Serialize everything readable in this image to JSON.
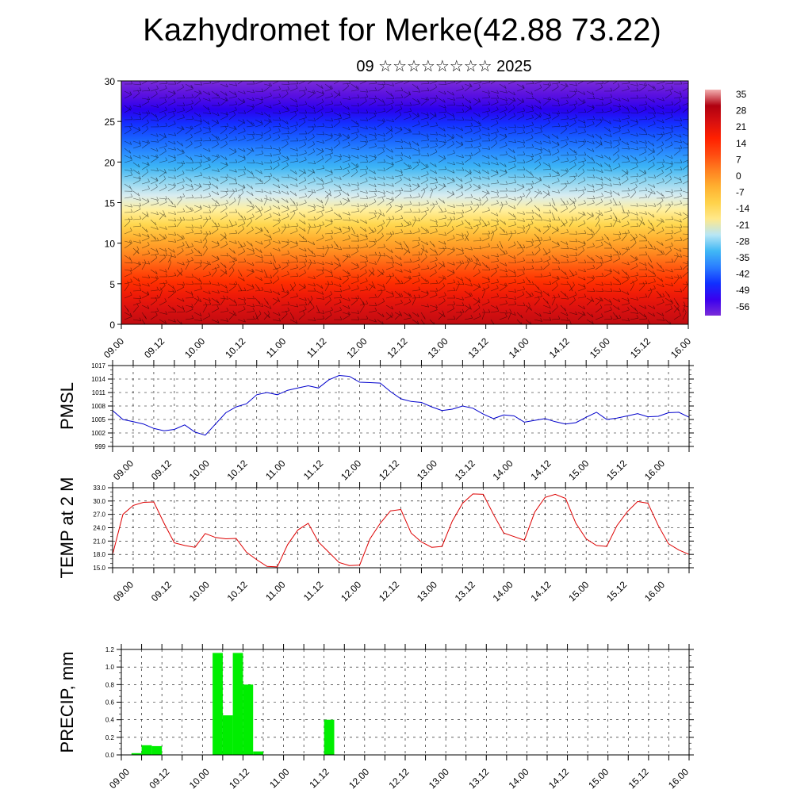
{
  "title": "Kazhydromet for Merke(42.88 73.22)",
  "subtitle": "09 ☆☆☆☆☆☆☆☆ 2025",
  "colors": {
    "pmsl_line": "#0000cc",
    "temp_line": "#dd0000",
    "precip_bar": "#00ee00",
    "colorbar": [
      "#7a2cd8",
      "#3a00ee",
      "#1030ff",
      "#2a7dff",
      "#40b8f5",
      "#b8e6f5",
      "#ffe88a",
      "#ffd24a",
      "#ffb030",
      "#ff8020",
      "#ff4a10",
      "#ff2000",
      "#d81010",
      "#b00010",
      "#f3b0b0"
    ]
  },
  "chart_data": [
    {
      "type": "heatmap",
      "title": "",
      "ylim": [
        0,
        30
      ],
      "yticks": [
        "0",
        "5",
        "10",
        "15",
        "20",
        "25",
        "30"
      ],
      "xticks": [
        "09.00",
        "09.12",
        "10.00",
        "10.12",
        "11.00",
        "11.12",
        "12.00",
        "12.12",
        "13.00",
        "13.12",
        "14.00",
        "14.12",
        "15.00",
        "15.12",
        "16.00"
      ],
      "colorbar_labels": [
        "35",
        "28",
        "21",
        "14",
        "7",
        "0",
        "-7",
        "-14",
        "-21",
        "-28",
        "-35",
        "-42",
        "-49",
        "-56"
      ],
      "overlay": "wind barbs"
    },
    {
      "type": "line",
      "ylabel": "PMSL",
      "ylim": [
        999,
        1017
      ],
      "yticks": [
        "999",
        "1002",
        "1005",
        "1008",
        "1011",
        "1014",
        "1017"
      ],
      "xticks": [
        "09.00",
        "09.12",
        "10.00",
        "10.12",
        "11.00",
        "11.12",
        "12.00",
        "12.12",
        "13.00",
        "13.12",
        "14.00",
        "14.12",
        "15.00",
        "15.12",
        "16.00"
      ],
      "grid": true,
      "x": [
        0,
        3,
        6,
        9,
        12,
        15,
        18,
        21,
        24,
        27,
        30,
        33,
        36,
        39,
        42,
        45,
        48,
        51,
        54,
        57,
        60,
        63,
        66,
        69,
        72,
        75,
        78,
        81,
        84,
        87,
        90,
        93,
        96,
        99,
        102,
        105,
        108,
        111,
        114,
        117,
        120,
        123,
        126,
        129,
        132,
        135,
        138,
        141,
        144,
        147,
        150,
        153,
        156,
        159,
        162,
        165,
        168
      ],
      "values": [
        1007,
        1005,
        1004.5,
        1004,
        1003,
        1002.5,
        1002.8,
        1003.8,
        1002.2,
        1001.5,
        1004,
        1006.5,
        1007.8,
        1008.5,
        1010.5,
        1011,
        1010.5,
        1011.5,
        1012,
        1012.5,
        1012,
        1013.8,
        1014.8,
        1014.6,
        1013.3,
        1013.2,
        1013.1,
        1011.2,
        1009.6,
        1009,
        1008.8,
        1007.8,
        1007,
        1007.3,
        1008,
        1007.5,
        1006.2,
        1005.2,
        1006,
        1005.8,
        1004.4,
        1004.8,
        1005.2,
        1004.5,
        1004,
        1004.3,
        1005.5,
        1006.6,
        1005,
        1005.3,
        1005.8,
        1006.3,
        1005.6,
        1005.7,
        1006.5,
        1006.6,
        1005.5
      ]
    },
    {
      "type": "line",
      "ylabel": "TEMP at 2 M",
      "ylim": [
        15,
        33
      ],
      "yticks": [
        "15.0",
        "18.0",
        "21.0",
        "24.0",
        "27.0",
        "30.0",
        "33.0"
      ],
      "xticks": [
        "09.00",
        "09.12",
        "10.00",
        "10.12",
        "11.00",
        "11.12",
        "12.00",
        "12.12",
        "13.00",
        "13.12",
        "14.00",
        "14.12",
        "15.00",
        "15.12",
        "16.00"
      ],
      "grid": true,
      "x": [
        0,
        3,
        6,
        9,
        12,
        15,
        18,
        21,
        24,
        27,
        30,
        33,
        36,
        39,
        42,
        45,
        48,
        51,
        54,
        57,
        60,
        63,
        66,
        69,
        72,
        75,
        78,
        81,
        84,
        87,
        90,
        93,
        96,
        99,
        102,
        105,
        108,
        111,
        114,
        117,
        120,
        123,
        126,
        129,
        132,
        135,
        138,
        141,
        144,
        147,
        150,
        153,
        156,
        159,
        162,
        165,
        168
      ],
      "values": [
        18,
        27,
        29,
        29.7,
        29.8,
        25,
        20.6,
        20,
        19.6,
        22.7,
        21.8,
        21.5,
        21.6,
        18.5,
        16.8,
        15.3,
        15.2,
        20.2,
        23.5,
        25,
        20.8,
        18.5,
        16.2,
        15.5,
        15.6,
        21.5,
        25,
        27.8,
        28.1,
        22.8,
        20.8,
        19.6,
        19.8,
        25.5,
        29.5,
        31.6,
        31.5,
        27,
        22.8,
        22,
        21.2,
        27.5,
        30.8,
        31.5,
        30.6,
        25,
        21.5,
        20,
        19.8,
        24.5,
        27.6,
        29.9,
        29.5,
        24.5,
        20.4,
        19,
        18
      ]
    },
    {
      "type": "bar",
      "ylabel": "PRECIP, mm",
      "ylim": [
        0,
        1.2
      ],
      "yticks": [
        "0.0",
        "0.2",
        "0.4",
        "0.6",
        "0.8",
        "1.0",
        "1.2"
      ],
      "xticks": [
        "09.00",
        "09.12",
        "10.00",
        "10.12",
        "11.00",
        "11.12",
        "12.00",
        "12.12",
        "13.00",
        "13.12",
        "14.00",
        "14.12",
        "15.00",
        "15.12",
        "16.00"
      ],
      "grid": true,
      "bars": [
        {
          "x0": 3,
          "x1": 6,
          "value": 0.02
        },
        {
          "x0": 6,
          "x1": 9,
          "value": 0.11
        },
        {
          "x0": 9,
          "x1": 12,
          "value": 0.1
        },
        {
          "x0": 27,
          "x1": 30,
          "value": 1.16
        },
        {
          "x0": 30,
          "x1": 33,
          "value": 0.45
        },
        {
          "x0": 33,
          "x1": 36,
          "value": 1.16
        },
        {
          "x0": 36,
          "x1": 39,
          "value": 0.8
        },
        {
          "x0": 39,
          "x1": 42,
          "value": 0.04
        },
        {
          "x0": 60,
          "x1": 63,
          "value": 0.4
        }
      ]
    }
  ]
}
